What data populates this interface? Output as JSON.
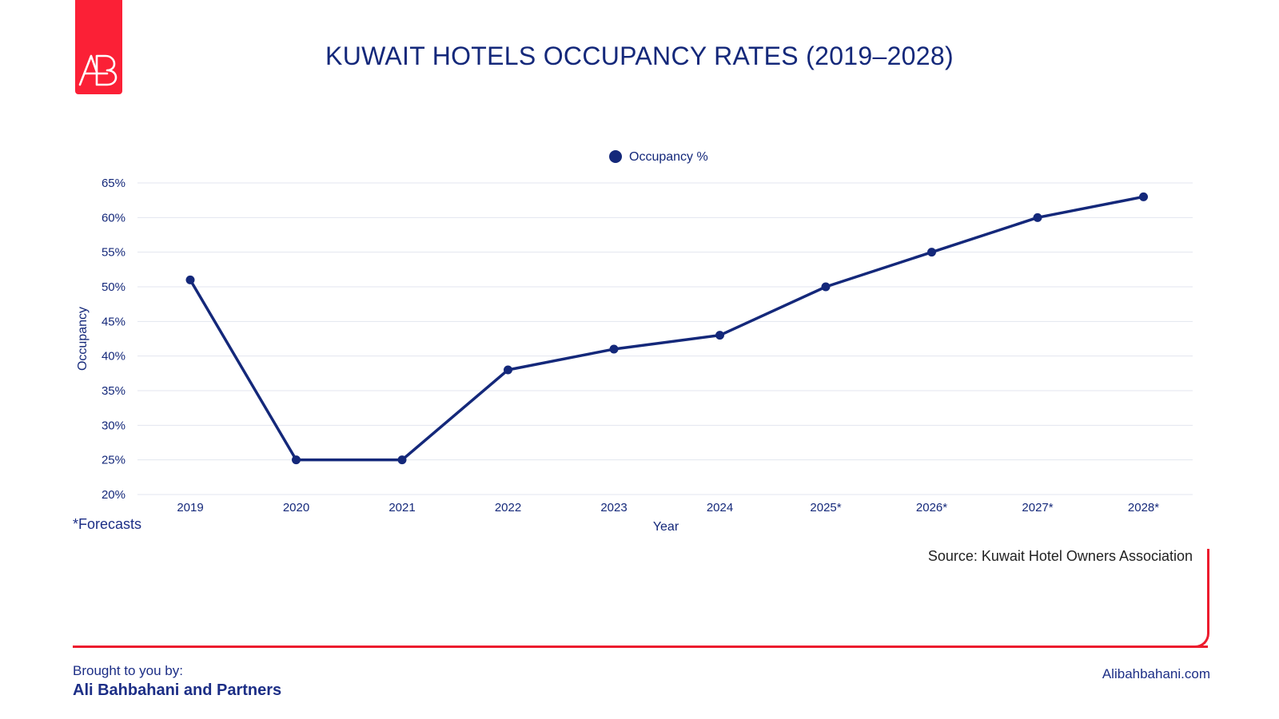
{
  "logo": {
    "text": "AB"
  },
  "header": {
    "title": "KUWAIT HOTELS OCCUPANCY RATES (2019–2028)"
  },
  "chart_data": {
    "type": "line",
    "title": "KUWAIT HOTELS OCCUPANCY RATES (2019–2028)",
    "xlabel": "Year",
    "ylabel": "Occupancy",
    "categories": [
      "2019",
      "2020",
      "2021",
      "2022",
      "2023",
      "2024",
      "2025*",
      "2026*",
      "2027*",
      "2028*"
    ],
    "series": [
      {
        "name": "Occupancy %",
        "values": [
          51,
          25,
          25,
          38,
          41,
          43,
          50,
          55,
          60,
          63
        ],
        "color": "#14287a"
      }
    ],
    "ylim": [
      20,
      65
    ],
    "yticks": [
      20,
      25,
      30,
      35,
      40,
      45,
      50,
      55,
      60,
      65
    ],
    "ytick_suffix": "%",
    "grid": true,
    "legend": "top-center"
  },
  "notes": {
    "forecast": "*Forecasts",
    "source": "Source: Kuwait Hotel Owners Association"
  },
  "footer": {
    "brought_by": "Brought to you by:",
    "company": "Ali Bahbahani and Partners",
    "website": "Alibahbahani.com"
  },
  "colors": {
    "accent": "#fb2036",
    "primary": "#14287a",
    "grid": "#e3e6ef"
  }
}
